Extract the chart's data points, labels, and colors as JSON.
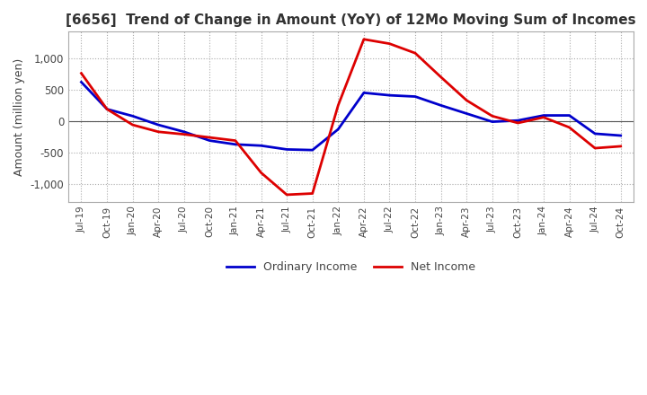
{
  "title": "[6656]  Trend of Change in Amount (YoY) of 12Mo Moving Sum of Incomes",
  "ylabel": "Amount (million yen)",
  "background_color": "#ffffff",
  "grid_color": "#aaaaaa",
  "ordinary_income_color": "#0000cc",
  "net_income_color": "#dd0000",
  "ylim": [
    -1280,
    1420
  ],
  "yticks": [
    -1000,
    -500,
    0,
    500,
    1000
  ],
  "x_labels": [
    "Jul-19",
    "Oct-19",
    "Jan-20",
    "Apr-20",
    "Jul-20",
    "Oct-20",
    "Jan-21",
    "Apr-21",
    "Jul-21",
    "Oct-21",
    "Jan-22",
    "Apr-22",
    "Jul-22",
    "Oct-22",
    "Jan-23",
    "Apr-23",
    "Jul-23",
    "Oct-23",
    "Jan-24",
    "Apr-24",
    "Jul-24",
    "Oct-24"
  ],
  "ordinary_income": [
    620,
    190,
    80,
    -60,
    -170,
    -310,
    -370,
    -390,
    -450,
    -460,
    -130,
    450,
    410,
    390,
    250,
    120,
    -10,
    10,
    90,
    90,
    -200,
    -230
  ],
  "net_income": [
    760,
    190,
    -60,
    -170,
    -210,
    -260,
    -310,
    -820,
    -1170,
    -1150,
    250,
    1300,
    1230,
    1080,
    700,
    330,
    80,
    -30,
    60,
    -100,
    -430,
    -400
  ]
}
